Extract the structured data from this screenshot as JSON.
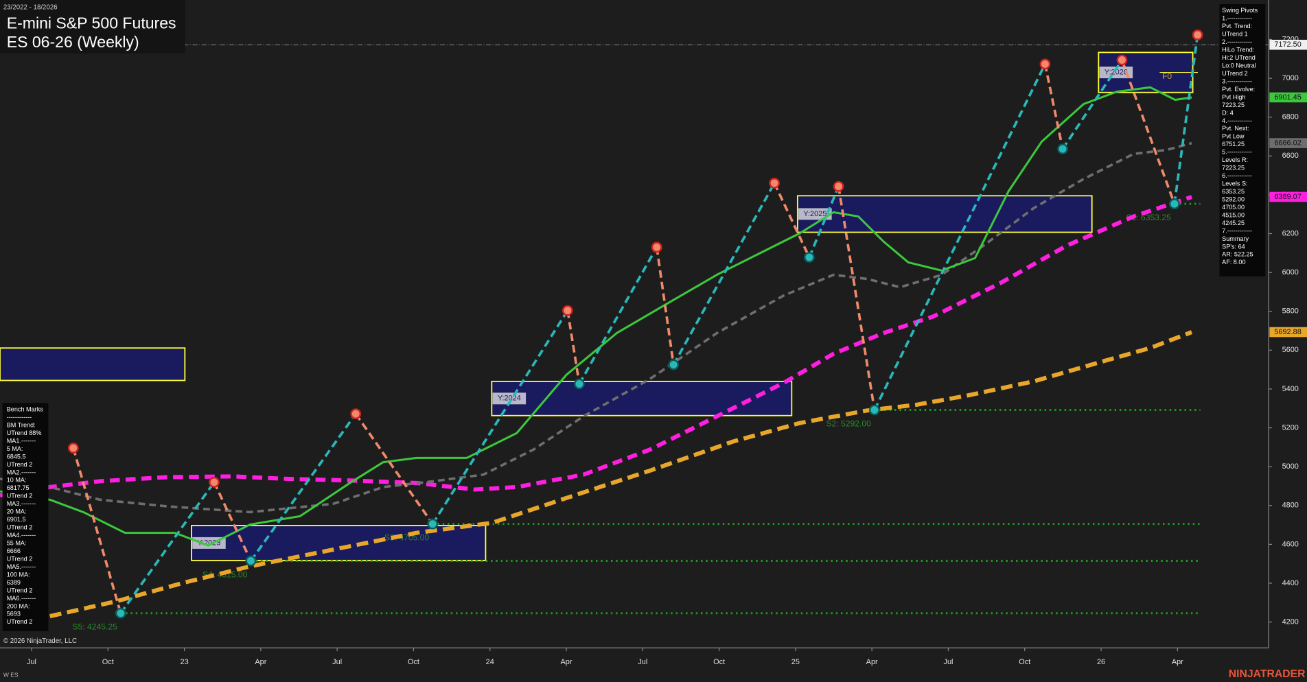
{
  "chart_data": {
    "type": "line",
    "title": "E-mini S&P 500 Futures",
    "subtitle": "ES 06-26 (Weekly)",
    "date_range": "23/2022 - 18/2026",
    "xlim": [
      4.76,
      54.58
    ],
    "ylim": [
      4067,
      7403
    ],
    "xticks": [
      {
        "value": 6,
        "label": "Jul"
      },
      {
        "value": 9,
        "label": "Oct"
      },
      {
        "value": 12,
        "label": "23"
      },
      {
        "value": 15,
        "label": "Apr"
      },
      {
        "value": 18,
        "label": "Jul"
      },
      {
        "value": 21,
        "label": "Oct"
      },
      {
        "value": 24,
        "label": "24"
      },
      {
        "value": 27,
        "label": "Apr"
      },
      {
        "value": 30,
        "label": "Jul"
      },
      {
        "value": 33,
        "label": "Oct"
      },
      {
        "value": 36,
        "label": "25"
      },
      {
        "value": 39,
        "label": "Apr"
      },
      {
        "value": 42,
        "label": "Jul"
      },
      {
        "value": 45,
        "label": "Oct"
      },
      {
        "value": 48,
        "label": "26"
      },
      {
        "value": 51,
        "label": "Apr"
      }
    ],
    "yticks": [
      4200,
      4400,
      4600,
      4800,
      5000,
      5200,
      5400,
      5600,
      5800,
      6000,
      6200,
      6400,
      6600,
      6800,
      7000,
      7200
    ],
    "last_price": {
      "value": 7172.5,
      "label": "7172.50"
    },
    "series": [
      {
        "color": "#e8a72a",
        "dash": "14 7",
        "width": 5,
        "x": [
          6.72,
          9.34,
          11.96,
          14.58,
          17.85,
          21.12,
          24.07,
          27.01,
          30.29,
          33.56,
          36.18,
          38.8,
          40.76,
          42.73,
          45.35,
          47.96,
          49.93,
          51.56
        ],
        "values": [
          4230,
          4307,
          4402,
          4487,
          4573,
          4659,
          4710,
          4839,
          4980,
          5130,
          5225,
          5289,
          5319,
          5366,
          5439,
          5538,
          5611,
          5692.88
        ]
      },
      {
        "color": "#ff1fe0",
        "dash": "12 7",
        "width": 5,
        "x": [
          4.76,
          6.72,
          8.68,
          11.3,
          13.92,
          15.89,
          18.5,
          21.12,
          23.41,
          25.05,
          27.67,
          30.29,
          32.91,
          35.53,
          37.49,
          39.45,
          41.42,
          44.04,
          46.65,
          49.27,
          51.56
        ],
        "values": [
          4852,
          4895,
          4925,
          4946,
          4950,
          4938,
          4929,
          4916,
          4882,
          4895,
          4959,
          5088,
          5259,
          5431,
          5581,
          5688,
          5774,
          5945,
          6138,
          6288,
          6389.07
        ]
      },
      {
        "color": "#6e6e6e",
        "dash": "8 5",
        "width": 3,
        "x": [
          4.76,
          6.72,
          8.68,
          11.3,
          14.58,
          17.85,
          19.81,
          21.78,
          23.74,
          25.71,
          27.67,
          30.29,
          32.91,
          35.53,
          37.49,
          38.8,
          40.11,
          41.74,
          43.38,
          45.35,
          47.31,
          49.27,
          50.58,
          51.56
        ],
        "values": [
          4938,
          4895,
          4830,
          4796,
          4766,
          4809,
          4895,
          4925,
          4959,
          5088,
          5259,
          5452,
          5688,
          5881,
          5988,
          5967,
          5924,
          5988,
          6138,
          6331,
          6481,
          6610,
          6631,
          6666.02
        ]
      },
      {
        "color": "#3cc83c",
        "dash": "",
        "width": 2.5,
        "x": [
          4.76,
          6.72,
          8.03,
          9.67,
          11.63,
          12.94,
          14.58,
          16.54,
          18.5,
          19.81,
          21.12,
          23.09,
          25.05,
          27.01,
          28.98,
          30.94,
          32.91,
          34.87,
          36.18,
          37.49,
          38.47,
          39.45,
          40.43,
          41.74,
          43.05,
          44.36,
          45.67,
          47.31,
          48.62,
          49.93,
          50.91,
          51.56
        ],
        "values": [
          4873,
          4830,
          4766,
          4659,
          4659,
          4594,
          4702,
          4745,
          4916,
          5023,
          5045,
          5045,
          5173,
          5474,
          5688,
          5838,
          5988,
          6117,
          6203,
          6310,
          6288,
          6160,
          6052,
          6010,
          6074,
          6417,
          6674,
          6867,
          6931,
          6953,
          6889,
          6901.45
        ]
      }
    ],
    "pivots": {
      "up_color": "#2ab8b8",
      "down_color": "#f08a6a",
      "x": [
        7.64,
        9.5,
        13.17,
        14.61,
        18.73,
        21.75,
        27.05,
        27.51,
        30.55,
        31.21,
        35.17,
        36.54,
        37.69,
        39.1,
        45.8,
        46.49,
        48.82,
        50.88,
        51.79
      ],
      "values": [
        5096,
        4245.25,
        4920,
        4515,
        5272,
        4705,
        5804,
        5426,
        6130,
        5525,
        6460,
        6078,
        6443,
        5292,
        7073,
        6636,
        7094,
        6353.25,
        7223.25
      ]
    },
    "levels": [
      {
        "label": "S1: 6353.25",
        "value": 6353.25,
        "start": 50.88
      },
      {
        "label": "S2: 5292.00",
        "value": 5292,
        "start": 39.1
      },
      {
        "label": "S3: 4705.00",
        "value": 4705,
        "start": 21.75
      },
      {
        "label": "S4: 4515.00",
        "value": 4515,
        "start": 14.61
      },
      {
        "label": "S5: 4245.25",
        "value": 4245.25,
        "start": 9.5
      }
    ],
    "boxes": [
      {
        "x": [
          4.76,
          12.02
        ],
        "range": [
          5444,
          5611
        ]
      },
      {
        "label": "Y:2023",
        "x": [
          12.28,
          23.83
        ],
        "range": [
          4517,
          4697
        ]
      },
      {
        "label": "Y:2024",
        "x": [
          24.07,
          35.85
        ],
        "range": [
          5263,
          5439
        ]
      },
      {
        "label": "Y:2025",
        "x": [
          36.08,
          47.64
        ],
        "range": [
          6207,
          6395
        ]
      },
      {
        "label": "Y:2026",
        "x": [
          47.9,
          51.6
        ],
        "range": [
          6927,
          7133
        ]
      }
    ],
    "f0": {
      "label": "F0",
      "value": 7030,
      "x": [
        50.3,
        51.8
      ]
    }
  },
  "swing_pivots_panel": {
    "lines": [
      "Swing Pivots",
      "1.------------",
      "Pvt. Trend:",
      "UTrend 1",
      "2.------------",
      "HiLo Trend:",
      "Hi:2 UTrend",
      "Lo:0 Neutral",
      "UTrend 2",
      "3.------------",
      "Pvt. Evolve:",
      "Pvt High",
      "7223.25",
      "D: 4",
      "4.------------",
      "Pvt. Next:",
      "Pvt Low",
      "6751.25",
      "5.------------",
      "Levels R:",
      "7223.25",
      "6.------------",
      "Levels S:",
      "6353.25",
      "5292.00",
      "4705.00",
      "4515.00",
      "4245.25",
      "7.------------",
      "Summary",
      "SP's: 64",
      "AR: 522.25",
      "AF: 8.00"
    ]
  },
  "bench_marks_panel": {
    "lines": [
      "Bench Marks",
      "------------",
      "BM Trend:",
      "UTrend 88%",
      "MA1.-------",
      "5 MA:",
      "6845.5",
      "UTrend 2",
      "MA2.-------",
      "10 MA:",
      "6817.75",
      "UTrend 2",
      "MA3.-------",
      "20 MA:",
      "6901.5",
      "UTrend 2",
      "MA4.-------",
      "55 MA:",
      "6666",
      "UTrend 2",
      "MA5.-------",
      "100 MA:",
      "6389",
      "UTrend 2",
      "MA6.-------",
      "200 MA:",
      "5693",
      "UTrend 2"
    ]
  },
  "footer": {
    "copyright": "© 2026 NinjaTrader, LLC",
    "instrument": "W ES",
    "brand": "NINJATRADER"
  }
}
